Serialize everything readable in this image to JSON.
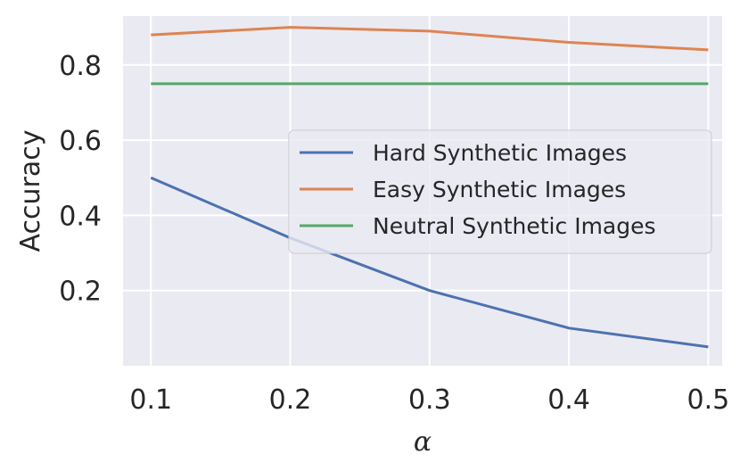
{
  "chart_data": {
    "type": "line",
    "xlabel": "α",
    "ylabel": "Accuracy",
    "x": [
      0.1,
      0.2,
      0.3,
      0.4,
      0.5
    ],
    "x_ticks": [
      "0.1",
      "0.2",
      "0.3",
      "0.4",
      "0.5"
    ],
    "y_ticks": [
      "0.2",
      "0.4",
      "0.6",
      "0.8"
    ],
    "xlim": [
      0.08,
      0.51
    ],
    "ylim": [
      0.0,
      0.93
    ],
    "grid": true,
    "legend_position": "center-right",
    "series": [
      {
        "name": "Hard Synthetic Images",
        "color": "#4C72B0",
        "values": [
          0.5,
          0.34,
          0.2,
          0.1,
          0.05
        ]
      },
      {
        "name": "Easy Synthetic Images",
        "color": "#DD8452",
        "values": [
          0.88,
          0.9,
          0.89,
          0.86,
          0.84
        ]
      },
      {
        "name": "Neutral Synthetic Images",
        "color": "#55A868",
        "values": [
          0.75,
          0.75,
          0.75,
          0.75,
          0.75
        ]
      }
    ],
    "colors": {
      "plot_background": "#EAEAF2",
      "grid": "#FFFFFF"
    }
  }
}
